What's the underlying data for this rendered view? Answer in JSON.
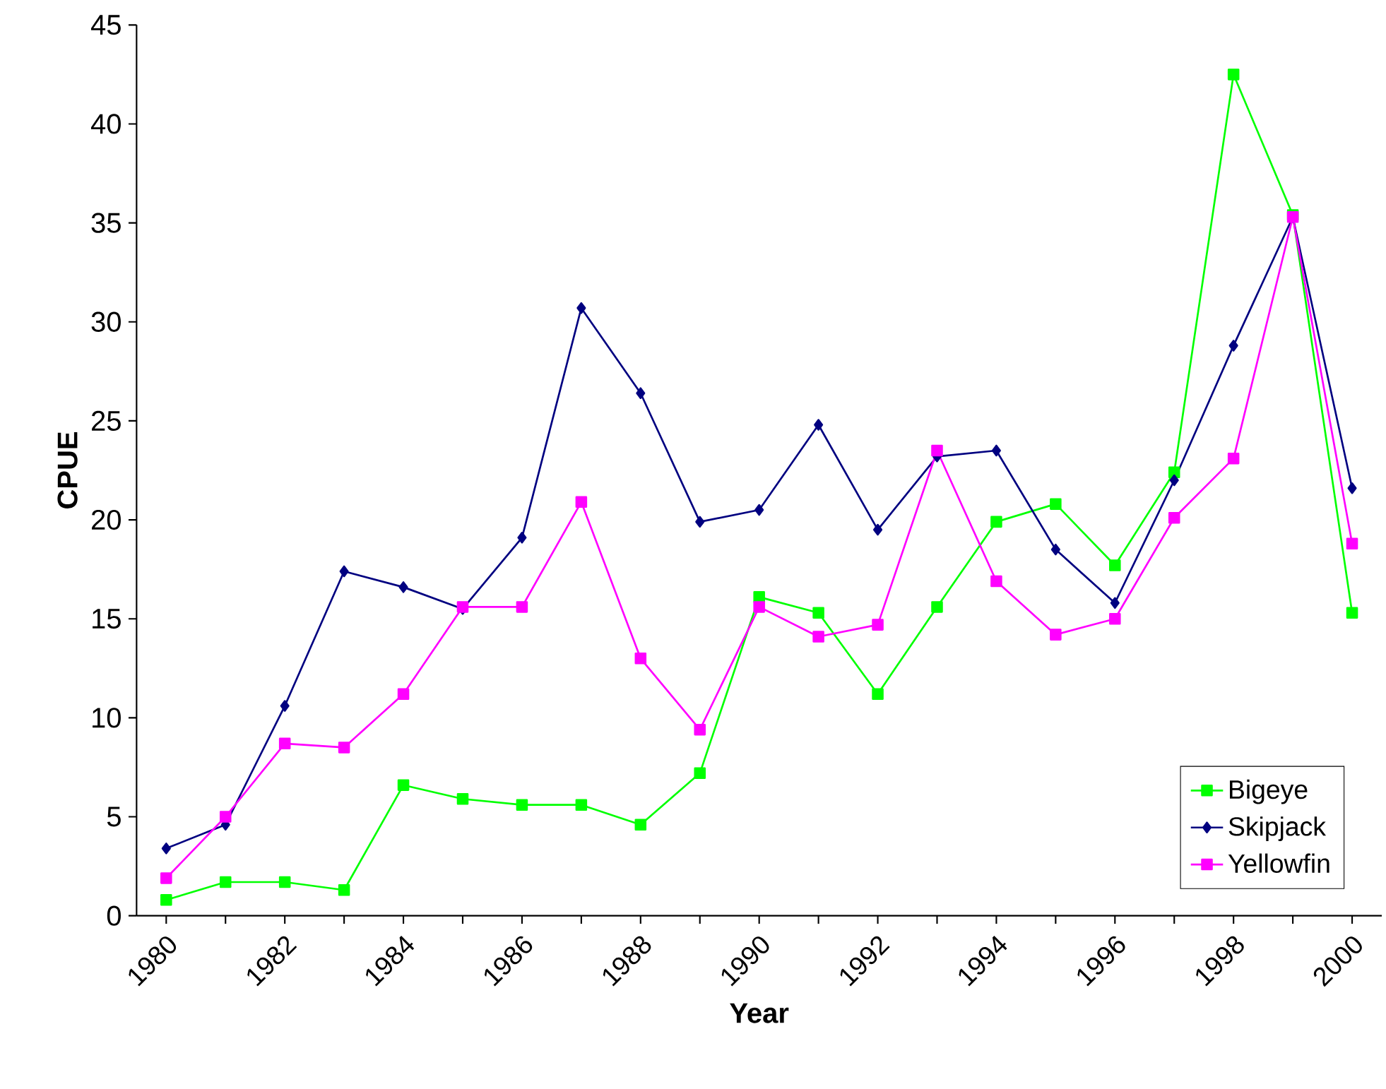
{
  "chart_data": {
    "type": "line",
    "xlabel": "Year",
    "ylabel": "CPUE",
    "categories": [
      "1980",
      null,
      "1982",
      null,
      "1984",
      null,
      "1986",
      null,
      "1988",
      null,
      "1990",
      null,
      "1992",
      null,
      "1994",
      null,
      "1996",
      null,
      "1998",
      null,
      "2000"
    ],
    "ylim": [
      0,
      45
    ],
    "yticks": [
      0,
      5,
      10,
      15,
      20,
      25,
      30,
      35,
      40,
      45
    ],
    "grid": false,
    "legend": "bottom right",
    "series": [
      {
        "name": "Bigeye",
        "color": "#00ff00",
        "marker": "square",
        "values": [
          0.8,
          1.7,
          1.7,
          1.3,
          6.6,
          5.9,
          5.6,
          5.6,
          4.6,
          7.2,
          16.1,
          15.3,
          11.2,
          15.6,
          19.9,
          20.8,
          17.7,
          22.4,
          42.5,
          35.4,
          15.3
        ]
      },
      {
        "name": "Skipjack",
        "color": "#000080",
        "marker": "diamond",
        "values": [
          3.4,
          4.6,
          10.6,
          17.4,
          16.6,
          15.5,
          19.1,
          30.7,
          26.4,
          19.9,
          20.5,
          24.8,
          19.5,
          23.2,
          23.5,
          18.5,
          15.8,
          22.0,
          28.8,
          35.3,
          21.6
        ]
      },
      {
        "name": "Yellowfin",
        "color": "#ff00ff",
        "marker": "square",
        "values": [
          1.9,
          5.0,
          8.7,
          8.5,
          11.2,
          15.6,
          15.6,
          20.9,
          13.0,
          9.4,
          15.6,
          14.1,
          14.7,
          23.5,
          16.9,
          14.2,
          15.0,
          20.1,
          23.1,
          35.3,
          18.8
        ]
      }
    ]
  }
}
